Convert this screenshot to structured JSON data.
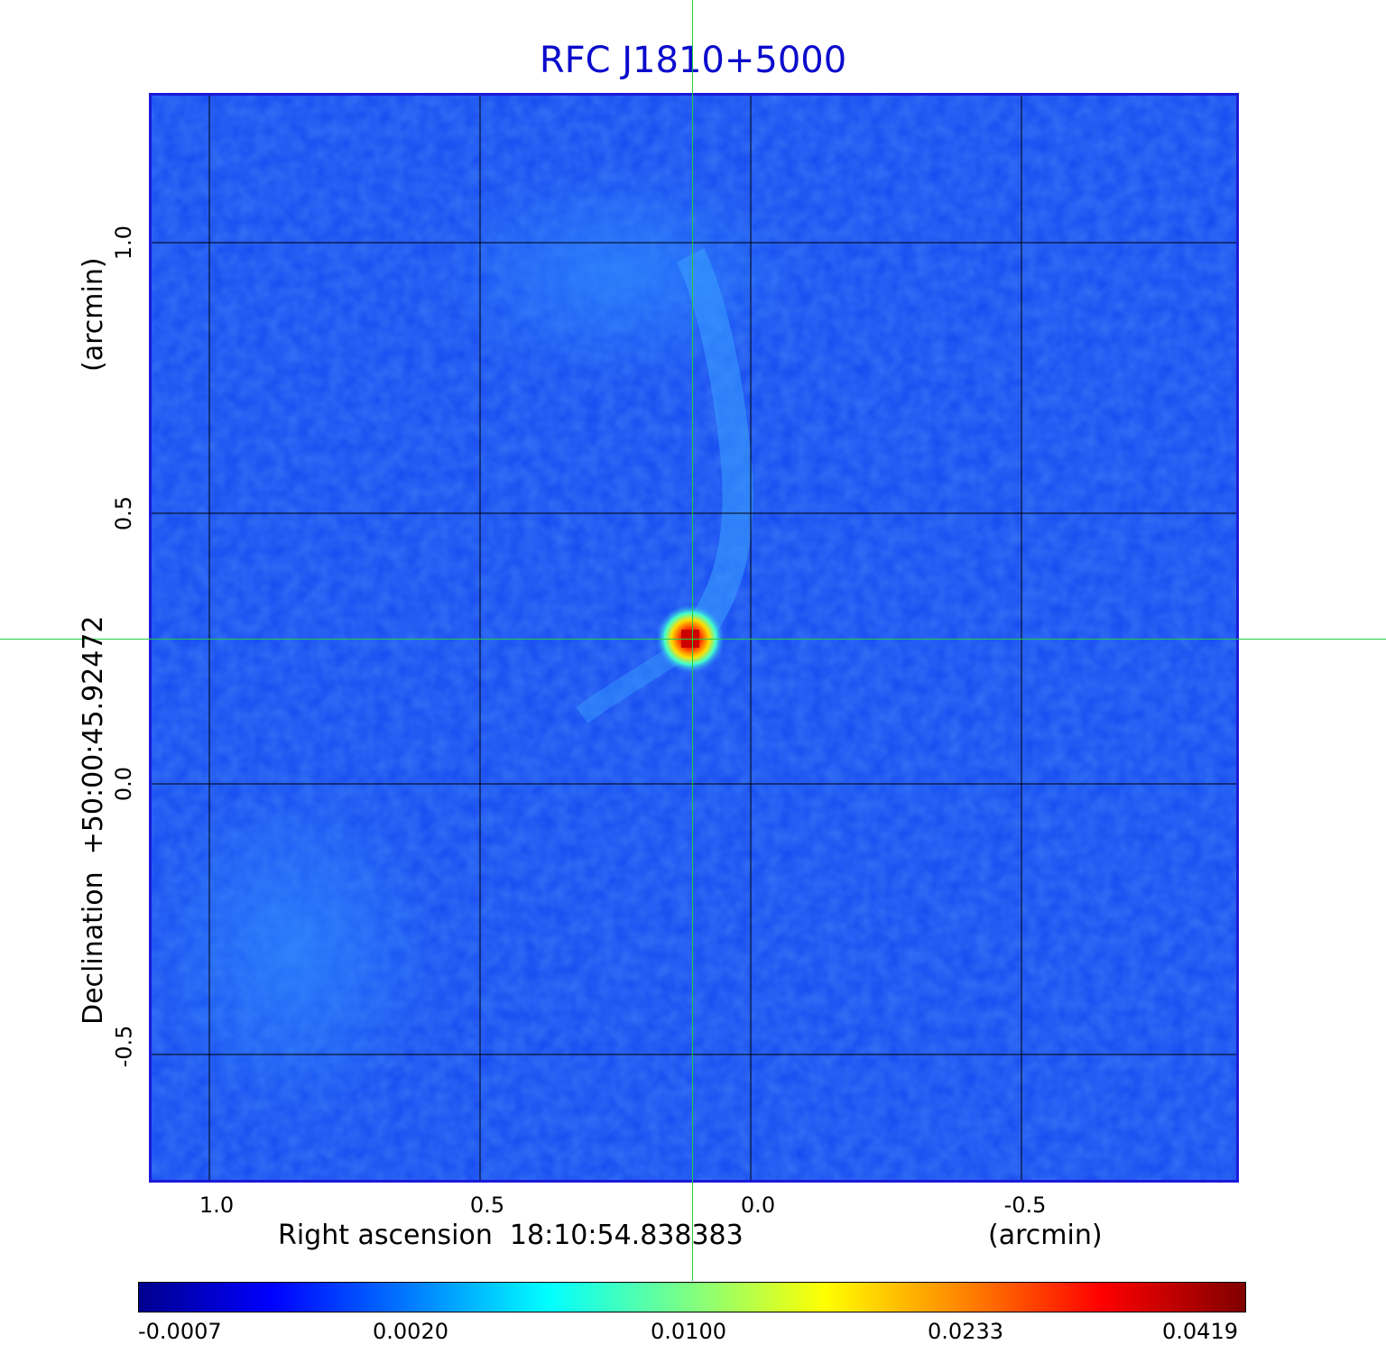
{
  "title": "RFC J1810+5000",
  "x_axis": {
    "label": "Right ascension  18:10:54.838383",
    "unit": "(arcmin)",
    "ticks": [
      "1.0",
      "0.5",
      "0.0",
      "-0.5"
    ]
  },
  "y_axis": {
    "label": "Declination  +50:00:45.92472",
    "unit": "(arcmin)",
    "ticks": [
      "1.0",
      "0.5",
      "0.0",
      "-0.5"
    ]
  },
  "colorbar": {
    "ticks": [
      "-0.0007",
      "0.0020",
      "0.0100",
      "0.0233",
      "0.0419"
    ],
    "colormap": "jet"
  },
  "colors": {
    "title": "#0b0bcc",
    "frame": "#1a1ad8",
    "background_emission": "#1448f0",
    "crosshair": "#22cc44",
    "grid": "#000000"
  }
}
